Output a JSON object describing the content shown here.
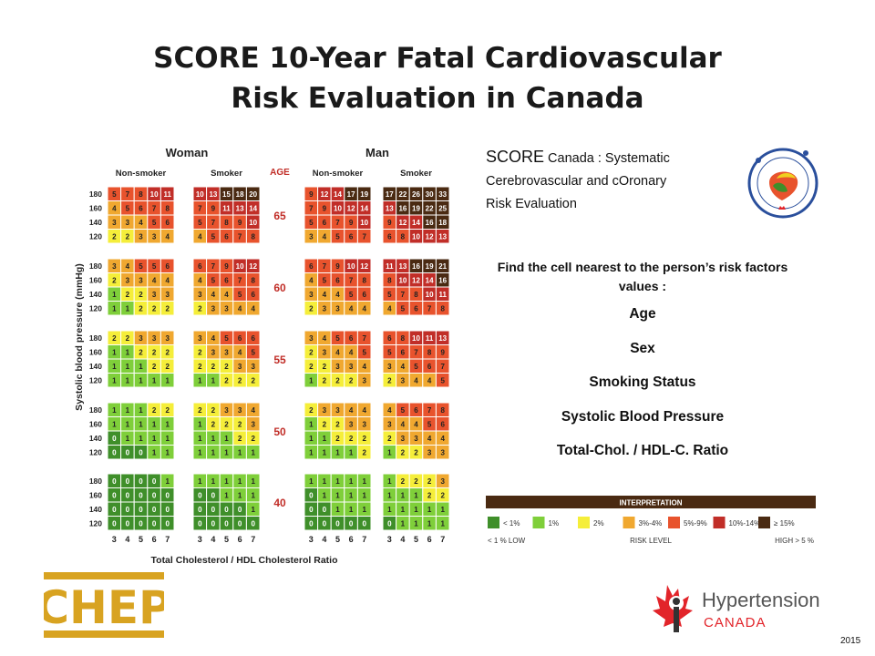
{
  "title_line1": "SCORE 10-Year Fatal Cardiovascular",
  "title_line2": "Risk Evaluation in Canada",
  "chart_data": {
    "type": "heatmap",
    "sex_labels": [
      "Woman",
      "Man"
    ],
    "smoker_labels": [
      "Non-smoker",
      "Smoker",
      "Non-smoker",
      "Smoker"
    ],
    "age_header": "AGE",
    "ages": [
      "65",
      "60",
      "55",
      "50",
      "40"
    ],
    "sbp_rows": [
      "180",
      "160",
      "140",
      "120"
    ],
    "ratio_cols": [
      "3",
      "4",
      "5",
      "6",
      "7"
    ],
    "ylabel": "Systolic blood pressure (mmHg)",
    "xlabel": "Total Cholesterol / HDL Cholesterol Ratio",
    "panels": [
      {
        "age": "65",
        "woman_nonsmoker": [
          [
            5,
            7,
            8,
            10,
            11
          ],
          [
            4,
            5,
            6,
            7,
            8
          ],
          [
            3,
            3,
            4,
            5,
            6
          ],
          [
            2,
            2,
            3,
            3,
            4
          ]
        ],
        "woman_smoker": [
          [
            10,
            13,
            15,
            18,
            20
          ],
          [
            7,
            9,
            11,
            13,
            14
          ],
          [
            5,
            7,
            8,
            9,
            10
          ],
          [
            4,
            5,
            6,
            7,
            8
          ]
        ],
        "man_nonsmoker": [
          [
            9,
            12,
            14,
            17,
            19
          ],
          [
            7,
            9,
            10,
            12,
            14
          ],
          [
            5,
            6,
            7,
            9,
            10
          ],
          [
            3,
            4,
            5,
            6,
            7
          ]
        ],
        "man_smoker": [
          [
            17,
            22,
            26,
            30,
            33
          ],
          [
            13,
            16,
            19,
            22,
            25
          ],
          [
            9,
            12,
            14,
            16,
            18
          ],
          [
            6,
            8,
            10,
            12,
            13
          ]
        ]
      },
      {
        "age": "60",
        "woman_nonsmoker": [
          [
            3,
            4,
            5,
            5,
            6
          ],
          [
            2,
            3,
            3,
            4,
            4
          ],
          [
            1,
            2,
            2,
            3,
            3
          ],
          [
            1,
            1,
            2,
            2,
            2
          ]
        ],
        "woman_smoker": [
          [
            6,
            7,
            9,
            10,
            12
          ],
          [
            4,
            5,
            6,
            7,
            8
          ],
          [
            3,
            4,
            4,
            5,
            6
          ],
          [
            2,
            3,
            3,
            4,
            4
          ]
        ],
        "man_nonsmoker": [
          [
            6,
            7,
            9,
            10,
            12
          ],
          [
            4,
            5,
            6,
            7,
            8
          ],
          [
            3,
            4,
            4,
            5,
            6
          ],
          [
            2,
            3,
            3,
            4,
            4
          ]
        ],
        "man_smoker": [
          [
            11,
            13,
            16,
            19,
            21
          ],
          [
            8,
            10,
            12,
            14,
            16
          ],
          [
            5,
            7,
            8,
            10,
            11
          ],
          [
            4,
            5,
            6,
            7,
            8
          ]
        ]
      },
      {
        "age": "55",
        "woman_nonsmoker": [
          [
            2,
            2,
            3,
            3,
            3
          ],
          [
            1,
            1,
            2,
            2,
            2
          ],
          [
            1,
            1,
            1,
            2,
            2
          ],
          [
            1,
            1,
            1,
            1,
            1
          ]
        ],
        "woman_smoker": [
          [
            3,
            4,
            5,
            6,
            6
          ],
          [
            2,
            3,
            3,
            4,
            5
          ],
          [
            2,
            2,
            2,
            3,
            3
          ],
          [
            1,
            1,
            2,
            2,
            2
          ]
        ],
        "man_nonsmoker": [
          [
            3,
            4,
            5,
            6,
            7
          ],
          [
            2,
            3,
            4,
            4,
            5
          ],
          [
            2,
            2,
            3,
            3,
            4
          ],
          [
            1,
            2,
            2,
            2,
            3
          ]
        ],
        "man_smoker": [
          [
            6,
            8,
            10,
            11,
            13
          ],
          [
            5,
            6,
            7,
            8,
            9
          ],
          [
            3,
            4,
            5,
            6,
            7
          ],
          [
            2,
            3,
            4,
            4,
            5
          ]
        ]
      },
      {
        "age": "50",
        "woman_nonsmoker": [
          [
            1,
            1,
            1,
            2,
            2
          ],
          [
            1,
            1,
            1,
            1,
            1
          ],
          [
            0,
            1,
            1,
            1,
            1
          ],
          [
            0,
            0,
            0,
            1,
            1
          ]
        ],
        "woman_smoker": [
          [
            2,
            2,
            3,
            3,
            4
          ],
          [
            1,
            2,
            2,
            2,
            3
          ],
          [
            1,
            1,
            1,
            2,
            2
          ],
          [
            1,
            1,
            1,
            1,
            1
          ]
        ],
        "man_nonsmoker": [
          [
            2,
            3,
            3,
            4,
            4
          ],
          [
            1,
            2,
            2,
            3,
            3
          ],
          [
            1,
            1,
            2,
            2,
            2
          ],
          [
            1,
            1,
            1,
            1,
            2
          ]
        ],
        "man_smoker": [
          [
            4,
            5,
            6,
            7,
            8
          ],
          [
            3,
            4,
            4,
            5,
            6
          ],
          [
            2,
            3,
            3,
            4,
            4
          ],
          [
            1,
            2,
            2,
            3,
            3
          ]
        ]
      },
      {
        "age": "40",
        "woman_nonsmoker": [
          [
            0,
            0,
            0,
            0,
            1
          ],
          [
            0,
            0,
            0,
            0,
            0
          ],
          [
            0,
            0,
            0,
            0,
            0
          ],
          [
            0,
            0,
            0,
            0,
            0
          ]
        ],
        "woman_smoker": [
          [
            1,
            1,
            1,
            1,
            1
          ],
          [
            0,
            0,
            1,
            1,
            1
          ],
          [
            0,
            0,
            0,
            0,
            1
          ],
          [
            0,
            0,
            0,
            0,
            0
          ]
        ],
        "man_nonsmoker": [
          [
            1,
            1,
            1,
            1,
            1
          ],
          [
            0,
            1,
            1,
            1,
            1
          ],
          [
            0,
            0,
            1,
            1,
            1
          ],
          [
            0,
            0,
            0,
            0,
            0
          ]
        ],
        "man_smoker": [
          [
            1,
            2,
            2,
            2,
            3
          ],
          [
            1,
            1,
            1,
            2,
            2
          ],
          [
            1,
            1,
            1,
            1,
            1
          ],
          [
            0,
            1,
            1,
            1,
            1
          ]
        ]
      }
    ]
  },
  "score_desc": {
    "big": "SCORE",
    "line1_rest": " Canada : Systematic",
    "line2": "Cerebrovascular and cOronary",
    "line3": "Risk Evaluation"
  },
  "instructions": {
    "lead": "Find the cell nearest to the person’s risk factors values :",
    "factors": [
      "Age",
      "Sex",
      "Smoking Status",
      "Systolic Blood Pressure",
      "Total-Chol. / HDL-C. Ratio"
    ]
  },
  "legend": {
    "header": "INTERPRETATION",
    "items": [
      "< 1%",
      "1%",
      "2%",
      "3%-4%",
      "5%-9%",
      "10%-14%",
      "≥ 15%"
    ],
    "colors": [
      "#3f8f2a",
      "#7fcf3a",
      "#f5ee3a",
      "#f0a830",
      "#e8532d",
      "#c12e28",
      "#4a2a12"
    ],
    "low_label": "< 1 % LOW",
    "mid_label": "RISK LEVEL",
    "high_label": "HIGH > 5 %"
  },
  "score_logo_text": "SCORE CANADA",
  "chep_text": "CHEP",
  "hypertension_line1": "Hypertension",
  "hypertension_line2": "CANADA",
  "year": "2015",
  "colors": {
    "lt1": "#3f8f2a",
    "p1": "#7fcf3a",
    "p2": "#f5ee3a",
    "p34": "#f0a830",
    "p59": "#e8532d",
    "p1014": "#c12e28",
    "p15": "#4a2a12",
    "chep_gold": "#d8a321",
    "htn_red": "#e2242a",
    "htn_gray": "#555555"
  }
}
